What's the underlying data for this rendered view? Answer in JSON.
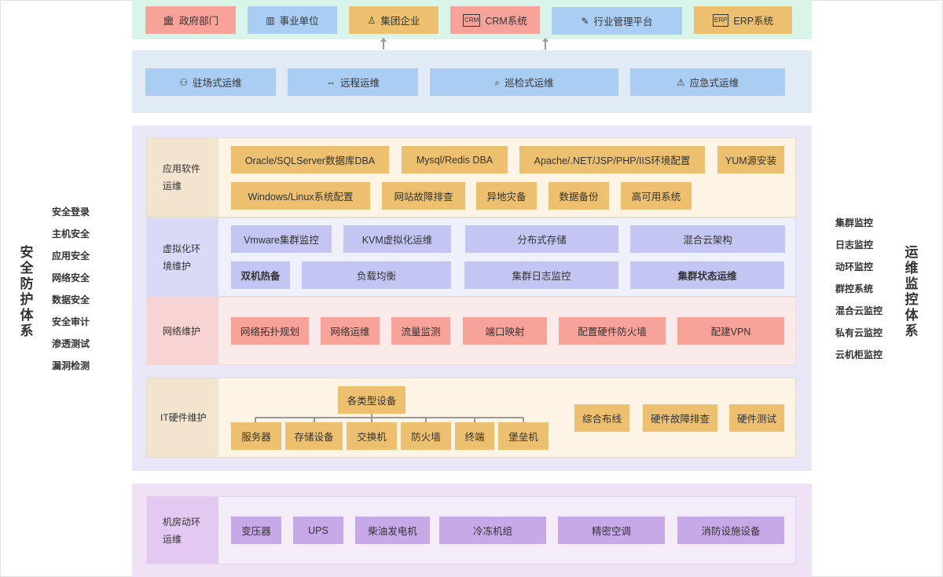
{
  "left_system": {
    "title_chars": [
      "安",
      "全",
      "防",
      "护",
      "体",
      "系"
    ],
    "items": [
      "安全登录",
      "主机安全",
      "应用安全",
      "网络安全",
      "数据安全",
      "安全审计",
      "渗透测试",
      "漏洞检测"
    ]
  },
  "right_system": {
    "title_chars": [
      "运",
      "维",
      "监",
      "控",
      "体",
      "系"
    ],
    "items": [
      "集群监控",
      "日志监控",
      "动环监控",
      "群控系统",
      "混合云监控",
      "私有云监控",
      "云机柜监控"
    ]
  },
  "clients": [
    {
      "label": "政府部门",
      "icon": "bank-icon",
      "glyph": "🏛"
    },
    {
      "label": "事业单位",
      "icon": "building-icon",
      "glyph": "▥"
    },
    {
      "label": "集团企业",
      "icon": "flask-icon",
      "glyph": "♙"
    },
    {
      "label": "CRM系统",
      "icon": "crm-icon",
      "glyph": "CRM"
    },
    {
      "label": "行业管理平台",
      "icon": "edit-icon",
      "glyph": "✎"
    },
    {
      "label": "ERP系统",
      "icon": "erp-icon",
      "glyph": "ERP"
    }
  ],
  "ops_modes": [
    {
      "label": "驻场式运维",
      "icon": "person-icon",
      "glyph": "⚇"
    },
    {
      "label": "远程运维",
      "icon": "exchange-icon",
      "glyph": "⇔"
    },
    {
      "label": "巡检式运维",
      "icon": "search-doc-icon",
      "glyph": "⌕"
    },
    {
      "label": "应急式运维",
      "icon": "alert-icon",
      "glyph": "⚠"
    }
  ],
  "app_software": {
    "label": "应用软件运维",
    "row1": [
      "Oracle/SQLServer数据库DBA",
      "Mysql/Redis DBA",
      "Apache/.NET/JSP/PHP/IIS环境配置",
      "YUM源安装"
    ],
    "row2": [
      "Windows/Linux系统配置",
      "网站故障排查",
      "异地灾备",
      "数据备份",
      "高可用系统"
    ]
  },
  "virtualization": {
    "label": "虚拟化环境维护",
    "row1": [
      "Vmware集群监控",
      "KVM虚拟化运维",
      "分布式存储",
      "混合云架构"
    ],
    "row2": [
      "双机热备",
      "负载均衡",
      "集群日志监控",
      "集群状态运维"
    ]
  },
  "network": {
    "label": "网络维护",
    "items": [
      "网络拓扑规划",
      "网络运维",
      "流量监测",
      "端口映射",
      "配置硬件防火墙",
      "配建VPN"
    ]
  },
  "it_hardware": {
    "label": "IT硬件维护",
    "root": "各类型设备",
    "devices": [
      "服务器",
      "存储设备",
      "交换机",
      "防火墙",
      "终端",
      "堡垒机"
    ],
    "extras": [
      "综合布线",
      "硬件故障排查",
      "硬件测试"
    ]
  },
  "machine_room": {
    "label": "机房动环运维",
    "items": [
      "变压器",
      "UPS",
      "柴油发电机",
      "冷冻机组",
      "精密空调",
      "消防设施设备"
    ]
  },
  "colors": {
    "red": "#f7a39a",
    "blue": "#a9cdf3",
    "orange": "#ecc06e",
    "lavender": "#c3c5f2",
    "purple": "#c8a9e8"
  }
}
